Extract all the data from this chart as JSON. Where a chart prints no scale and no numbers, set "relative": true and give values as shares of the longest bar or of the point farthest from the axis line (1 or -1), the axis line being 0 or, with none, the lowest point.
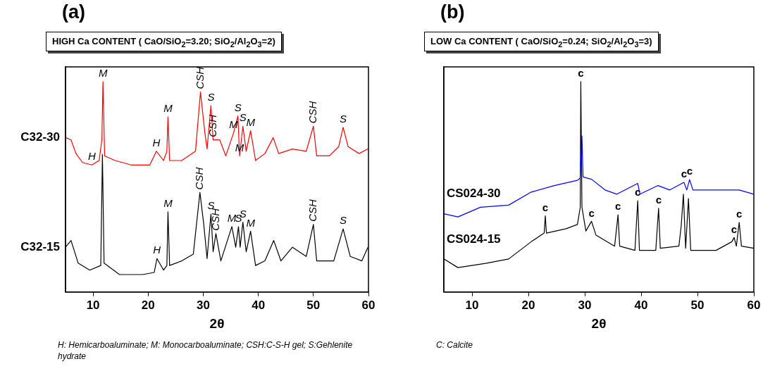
{
  "chart_data": [
    {
      "type": "line",
      "title": "(a)",
      "subtitle": "HIGH Ca CONTENT  ( CaO/SiO$_{2}$=3.20; SiO$_{2}$/Al$_{2}$O$_{3}$=2)",
      "xlabel": "2θ",
      "relative": true,
      "xlim": [
        5,
        60
      ],
      "xticks": [
        10,
        20,
        30,
        40,
        50,
        60
      ],
      "tick_labels": "x",
      "series": [
        {
          "name": "C32-30",
          "color": "#ff0000",
          "x": [
            5,
            6.0,
            6.9,
            8.1,
            9.8,
            11.1,
            11.6,
            11.8,
            12.1,
            14.0,
            16.9,
            20.3,
            21.5,
            22.8,
            23.4,
            23.6,
            23.9,
            26.1,
            28.6,
            29.5,
            30.3,
            30.7,
            31.4,
            31.8,
            33.0,
            34.1,
            35.5,
            36.3,
            36.6,
            37.2,
            37.8,
            38.6,
            39.5,
            41.2,
            42.7,
            43.7,
            46.2,
            48.7,
            50.0,
            50.6,
            52.9,
            54.6,
            55.4,
            56.3,
            58.3,
            59.9
          ],
          "values": [
            0.734,
            0.723,
            0.658,
            0.615,
            0.604,
            0.625,
            0.723,
            1.0,
            0.647,
            0.625,
            0.604,
            0.604,
            0.669,
            0.625,
            0.669,
            0.832,
            0.625,
            0.625,
            0.669,
            0.951,
            0.756,
            0.68,
            0.886,
            0.723,
            0.723,
            0.647,
            0.756,
            0.837,
            0.647,
            0.788,
            0.669,
            0.767,
            0.625,
            0.658,
            0.734,
            0.658,
            0.68,
            0.669,
            0.788,
            0.647,
            0.647,
            0.691,
            0.783,
            0.691,
            0.658,
            0.68
          ]
        },
        {
          "name": "C32-15",
          "color": "#000000",
          "x": [
            5,
            6.0,
            7.3,
            9.4,
            11.4,
            11.7,
            12.0,
            14.8,
            19.0,
            21.1,
            21.6,
            22.8,
            23.4,
            23.6,
            23.9,
            26.1,
            28.2,
            29.4,
            30.1,
            30.7,
            31.4,
            31.8,
            32.3,
            33.2,
            35.2,
            35.9,
            36.4,
            36.7,
            37.2,
            37.8,
            38.6,
            39.5,
            41.2,
            42.8,
            44.1,
            46.2,
            48.7,
            50.0,
            50.6,
            53.7,
            55.4,
            56.7,
            58.8,
            59.9
          ],
          "values": [
            0.213,
            0.245,
            0.137,
            0.104,
            0.126,
            0.653,
            0.137,
            0.083,
            0.083,
            0.093,
            0.159,
            0.104,
            0.126,
            0.381,
            0.126,
            0.148,
            0.18,
            0.473,
            0.321,
            0.159,
            0.37,
            0.191,
            0.278,
            0.148,
            0.311,
            0.213,
            0.311,
            0.213,
            0.332,
            0.191,
            0.289,
            0.126,
            0.148,
            0.245,
            0.148,
            0.213,
            0.169,
            0.321,
            0.148,
            0.148,
            0.3,
            0.169,
            0.148,
            0.213
          ]
        }
      ],
      "annotations": [
        {
          "text": "M",
          "x": 11.8,
          "y": 1.0
        },
        {
          "text": "H",
          "x": 9.8,
          "y": 0.604
        },
        {
          "text": "H",
          "x": 21.5,
          "y": 0.669
        },
        {
          "text": "M",
          "x": 23.6,
          "y": 0.832
        },
        {
          "text": "CSH",
          "x": 29.5,
          "y": 0.951
        },
        {
          "text": "S",
          "x": 31.4,
          "y": 0.886
        },
        {
          "text": "CSH",
          "x": 31.8,
          "y": 0.723
        },
        {
          "text": "M",
          "x": 35.5,
          "y": 0.756
        },
        {
          "text": "S",
          "x": 36.3,
          "y": 0.837
        },
        {
          "text": "S",
          "x": 37.2,
          "y": 0.788
        },
        {
          "text": "M",
          "x": 38.6,
          "y": 0.767
        },
        {
          "text": "M",
          "x": 36.6,
          "y": 0.647
        },
        {
          "text": "CSH",
          "x": 50.0,
          "y": 0.788
        },
        {
          "text": "S",
          "x": 55.4,
          "y": 0.783
        },
        {
          "text": "CSH",
          "x": 29.4,
          "y": 0.473
        },
        {
          "text": "M",
          "x": 23.6,
          "y": 0.381
        },
        {
          "text": "H",
          "x": 21.6,
          "y": 0.159
        },
        {
          "text": "S",
          "x": 31.4,
          "y": 0.37
        },
        {
          "text": "CSH",
          "x": 32.3,
          "y": 0.278
        },
        {
          "text": "M",
          "x": 35.2,
          "y": 0.311
        },
        {
          "text": "S",
          "x": 36.4,
          "y": 0.311
        },
        {
          "text": "S",
          "x": 37.2,
          "y": 0.332
        },
        {
          "text": "M",
          "x": 38.6,
          "y": 0.289
        },
        {
          "text": "CSH",
          "x": 50.0,
          "y": 0.321
        },
        {
          "text": "S",
          "x": 55.4,
          "y": 0.3
        },
        "H: Hemicarboaluminate; M: Monocarboaluminate; CSH:C-S-H gel; S:Gehlenite hydrate"
      ]
    },
    {
      "type": "line",
      "title": "(b)",
      "subtitle": "LOW Ca CONTENT ( CaO/SiO$_{2}$=0.24; SiO$_{2}$/Al$_{2}$O$_{3}$=3)",
      "xlabel": "2θ",
      "relative": true,
      "xlim": [
        5,
        60
      ],
      "xticks": [
        10,
        20,
        30,
        40,
        50,
        60
      ],
      "tick_labels": "x",
      "series": [
        {
          "name": "CS024-30",
          "color": "#0000ff",
          "x": [
            5,
            7.5,
            11.5,
            16.5,
            20.5,
            24.6,
            28.7,
            29.2,
            29.5,
            29.7,
            31.2,
            33.6,
            35.7,
            39.4,
            39.8,
            43.0,
            45.1,
            47.6,
            48.1,
            48.6,
            49.2,
            53.3,
            57.4,
            60
          ],
          "values": [
            0.372,
            0.357,
            0.403,
            0.413,
            0.475,
            0.506,
            0.531,
            0.542,
            0.742,
            0.547,
            0.536,
            0.485,
            0.465,
            0.516,
            0.465,
            0.506,
            0.485,
            0.521,
            0.485,
            0.534,
            0.485,
            0.485,
            0.485,
            0.465
          ]
        },
        {
          "name": "CS024-15",
          "color": "#000000",
          "x": [
            5,
            7.5,
            12.4,
            16.5,
            20.5,
            22.8,
            23.0,
            23.2,
            26.7,
            28.7,
            29.2,
            29.3,
            29.5,
            30.2,
            31.2,
            32.0,
            35.3,
            35.9,
            36.2,
            38.9,
            39.4,
            39.7,
            42.6,
            43.1,
            43.4,
            46.7,
            47.1,
            47.5,
            47.9,
            48.4,
            48.8,
            53.3,
            56.1,
            56.5,
            56.9,
            57.4,
            57.8,
            60
          ],
          "values": [
            0.157,
            0.116,
            0.136,
            0.157,
            0.239,
            0.28,
            0.362,
            0.28,
            0.301,
            0.321,
            0.403,
            1.0,
            0.403,
            0.29,
            0.336,
            0.27,
            0.218,
            0.367,
            0.218,
            0.198,
            0.434,
            0.198,
            0.198,
            0.398,
            0.208,
            0.218,
            0.311,
            0.465,
            0.208,
            0.444,
            0.198,
            0.198,
            0.239,
            0.259,
            0.218,
            0.331,
            0.218,
            0.208
          ]
        }
      ],
      "annotations": [
        {
          "text": "c",
          "x": 29.3,
          "y": 1.0
        },
        {
          "text": "c",
          "x": 23.0,
          "y": 0.362
        },
        {
          "text": "c",
          "x": 31.2,
          "y": 0.336
        },
        {
          "text": "c",
          "x": 35.9,
          "y": 0.367
        },
        {
          "text": "c",
          "x": 39.4,
          "y": 0.434
        },
        {
          "text": "c",
          "x": 43.1,
          "y": 0.398
        },
        {
          "text": "c",
          "x": 47.6,
          "y": 0.521
        },
        {
          "text": "c",
          "x": 48.6,
          "y": 0.534
        },
        {
          "text": "c",
          "x": 56.5,
          "y": 0.259
        },
        {
          "text": "c",
          "x": 57.4,
          "y": 0.331
        },
        "C: Calcite"
      ]
    }
  ]
}
